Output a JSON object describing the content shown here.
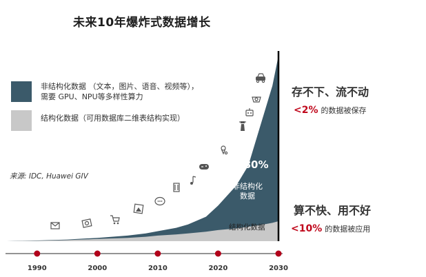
{
  "title": "未来10年爆炸式数据增长",
  "legend": {
    "unstructured": {
      "line1": "非结构化数据 （文本，图片、语音、视频等），",
      "line2": "需要 GPU、NPU等多样性算力",
      "color": "#3b5a6a"
    },
    "structured": {
      "line1": "结构化数据（可用数据库二维表结构实现）",
      "color": "#c8c8c8"
    }
  },
  "source": "来源: IDC, Huawei GIV",
  "chart_data": {
    "type": "area",
    "x": [
      1985,
      1990,
      1995,
      2000,
      2005,
      2008,
      2010,
      2013,
      2015,
      2018,
      2020,
      2023,
      2025,
      2027,
      2029,
      2030
    ],
    "xticks": [
      "1990",
      "2000",
      "2010",
      "2020",
      "2030"
    ],
    "series": [
      {
        "name": "结构化数据",
        "color": "#c8c8c8",
        "values": [
          0,
          0.4,
          1,
          2,
          3,
          4,
          5,
          6,
          7,
          8.5,
          10,
          11.5,
          13,
          14.5,
          16.5,
          18
        ]
      },
      {
        "name": "非结构化数据",
        "color": "#3b5a6a",
        "values": [
          0,
          0.6,
          1.5,
          3,
          5,
          7,
          9,
          12,
          15,
          22,
          32,
          50,
          68,
          104,
          140,
          167
        ]
      }
    ],
    "ylim": [
      0,
      170
    ],
    "annotations": {
      "unstructured_share": ">80%",
      "unstructured_label_1": "非结构化",
      "unstructured_label_2": "数据",
      "structured_label": "结构化数据"
    },
    "icons": [
      "mail-icon",
      "photo-icon",
      "shopping-cart-icon",
      "picture-icon",
      "chat-icon",
      "film-icon",
      "music-icon",
      "gamepad-icon",
      "location-icon",
      "lighthouse-icon",
      "robot-icon",
      "camera-icon",
      "car-icon"
    ]
  },
  "callouts": {
    "top_heading": "存不下、流不动",
    "top_pct": "<2%",
    "top_text": "的数据被保存",
    "bottom_heading": "算不快、用不好",
    "bottom_pct": "<10%",
    "bottom_text": "的数据被应用",
    "accent_color": "#c0081c"
  }
}
